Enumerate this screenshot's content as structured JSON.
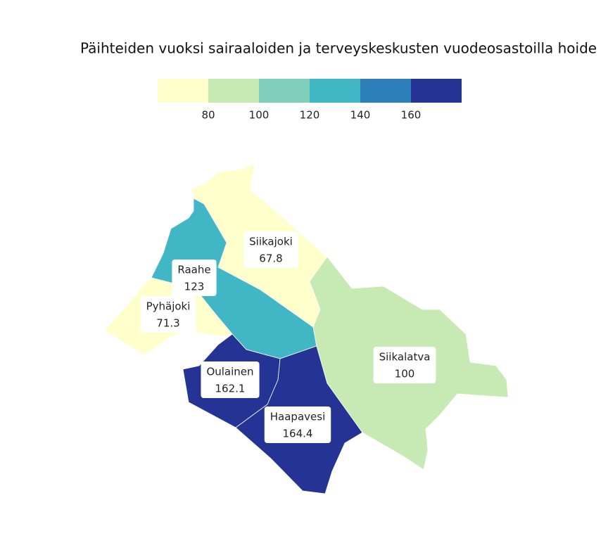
{
  "chart_data": {
    "type": "choropleth",
    "title": "Päihteiden vuoksi sairaaloiden ja terveyskeskusten vuodeosastoilla hoide",
    "legend": {
      "ticks": [
        80,
        100,
        120,
        140,
        160
      ],
      "colors": [
        "#ffffcc",
        "#c7e9b4",
        "#7fcdbb",
        "#41b6c4",
        "#2c7fb8",
        "#253494"
      ]
    },
    "regions": [
      {
        "name": "Siikajoki",
        "value": 67.8
      },
      {
        "name": "Raahe",
        "value": 123
      },
      {
        "name": "Pyhäjoki",
        "value": 71.3
      },
      {
        "name": "Oulainen",
        "value": 162.1
      },
      {
        "name": "Haapavesi",
        "value": 164.4
      },
      {
        "name": "Siikalatva",
        "value": 100
      }
    ]
  }
}
